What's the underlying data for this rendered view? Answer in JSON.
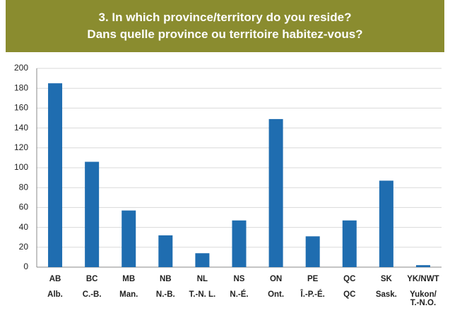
{
  "chart_data": {
    "type": "bar",
    "title": [
      "3. In which province/territory do you reside?",
      "Dans quelle province ou territoire habitez-vous?"
    ],
    "categories": [
      [
        "AB",
        "Alb."
      ],
      [
        "BC",
        "C.-B."
      ],
      [
        "MB",
        "Man."
      ],
      [
        "NB",
        "N.-B."
      ],
      [
        "NL",
        "T.-N. L."
      ],
      [
        "NS",
        "N.-É."
      ],
      [
        "ON",
        "Ont."
      ],
      [
        "PE",
        "Î.-P.-É."
      ],
      [
        "QC",
        "QC"
      ],
      [
        "SK",
        "Sask."
      ],
      [
        "YK/NWT",
        "Yukon/ T.-N.O."
      ]
    ],
    "values": [
      185,
      106,
      57,
      32,
      14,
      47,
      149,
      31,
      47,
      87,
      2
    ],
    "color": "#1f6db0",
    "ylim": [
      0,
      200
    ],
    "yticks": [
      0,
      20,
      40,
      60,
      80,
      100,
      120,
      140,
      160,
      180,
      200
    ],
    "grid": true
  }
}
